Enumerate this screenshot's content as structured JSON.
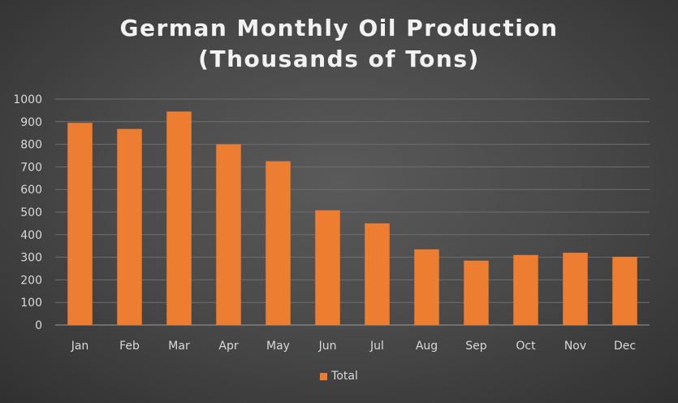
{
  "colors": {
    "bar": "#ed7d31",
    "grid": "#6e6e6e",
    "axis_text": "#d9d9d9",
    "title": "#f2f2f2"
  },
  "chart_data": {
    "type": "bar",
    "title_line1": "German Monthly Oil Production",
    "title_line2": "(Thousands of Tons)",
    "categories": [
      "Jan",
      "Feb",
      "Mar",
      "Apr",
      "May",
      "Jun",
      "Jul",
      "Aug",
      "Sep",
      "Oct",
      "Nov",
      "Dec"
    ],
    "series": [
      {
        "name": "Total",
        "values": [
          895,
          868,
          945,
          800,
          725,
          508,
          450,
          335,
          285,
          310,
          320,
          302
        ]
      }
    ],
    "ylim": [
      0,
      1000
    ],
    "yticks": [
      0,
      100,
      200,
      300,
      400,
      500,
      600,
      700,
      800,
      900,
      1000
    ],
    "grid": true,
    "legend": "bottom"
  }
}
